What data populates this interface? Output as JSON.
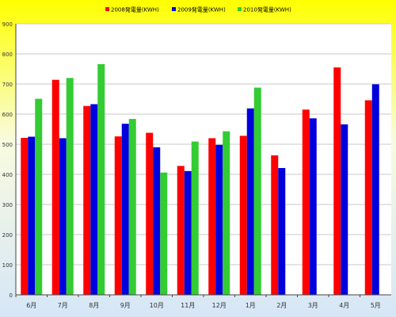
{
  "chart_data": {
    "type": "bar",
    "categories": [
      "6月",
      "7月",
      "8月",
      "9月",
      "10月",
      "11月",
      "12月",
      "1月",
      "2月",
      "3月",
      "4月",
      "5月"
    ],
    "series": [
      {
        "name": "2008発電量(KWH)",
        "color": "#ff0000",
        "values": [
          521,
          714,
          627,
          526,
          538,
          428,
          520,
          528,
          463,
          615,
          755,
          646
        ]
      },
      {
        "name": "2009発電量(KWH)",
        "color": "#0000dd",
        "values": [
          525,
          520,
          633,
          568,
          490,
          411,
          498,
          619,
          421,
          586,
          566,
          699
        ]
      },
      {
        "name": "2010発電量(KWH)",
        "color": "#33cc33",
        "values": [
          651,
          720,
          766,
          584,
          406,
          509,
          543,
          688,
          null,
          null,
          null,
          null
        ]
      }
    ],
    "yticks": [
      0,
      100,
      200,
      300,
      400,
      500,
      600,
      700,
      800,
      900
    ],
    "ylim": [
      0,
      900
    ],
    "grid": true,
    "legend_position": "top",
    "colors": {
      "bg_top": "#ffff00",
      "bg_bottom": "#d6e6f7",
      "plot_bg": "#ffffff",
      "grid": "#c8c8c8"
    }
  }
}
